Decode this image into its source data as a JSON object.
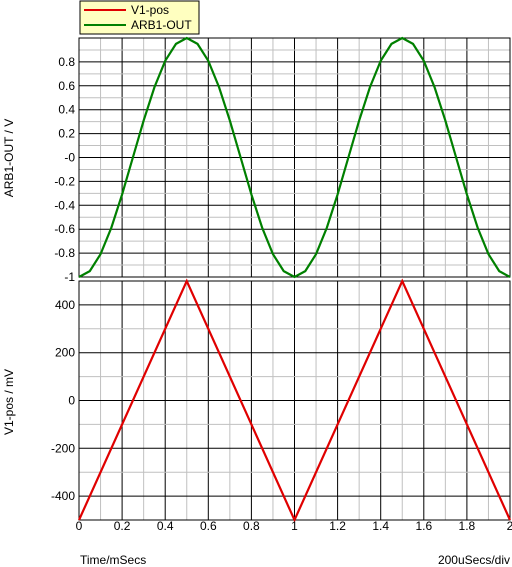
{
  "chart_data": {
    "type": "line",
    "legend": {
      "placement": "top-left",
      "entries": [
        {
          "name": "V1-pos",
          "color": "#e00000"
        },
        {
          "name": "ARB1-OUT",
          "color": "#008000"
        }
      ]
    },
    "x": {
      "label": "Time/mSecs",
      "range": [
        0,
        2
      ],
      "ticks": [
        "0",
        "0.2",
        "0.4",
        "0.6",
        "0.8",
        "1",
        "1.2",
        "1.4",
        "1.6",
        "1.8",
        "2"
      ],
      "scale_note": "200uSecs/div"
    },
    "panels": [
      {
        "ylabel": "ARB1-OUT / V",
        "ylim": [
          -1,
          1
        ],
        "yticks": [
          "0.8",
          "0.6",
          "0.4",
          "0.2",
          "-0",
          "-0.2",
          "-0.4",
          "-0.6",
          "-0.8",
          "-1"
        ],
        "ytick_values": [
          0.8,
          0.6,
          0.4,
          0.2,
          0,
          -0.2,
          -0.4,
          -0.6,
          -0.8,
          -1
        ],
        "series": [
          {
            "name": "ARB1-OUT",
            "color": "#008000",
            "x": [
              0,
              0.05,
              0.1,
              0.15,
              0.2,
              0.25,
              0.3,
              0.35,
              0.4,
              0.45,
              0.5,
              0.55,
              0.6,
              0.65,
              0.7,
              0.75,
              0.8,
              0.85,
              0.9,
              0.95,
              1.0,
              1.05,
              1.1,
              1.15,
              1.2,
              1.25,
              1.3,
              1.35,
              1.4,
              1.45,
              1.5,
              1.55,
              1.6,
              1.65,
              1.7,
              1.75,
              1.8,
              1.85,
              1.9,
              1.95,
              2.0
            ],
            "y": [
              -1,
              -0.951,
              -0.809,
              -0.588,
              -0.309,
              0,
              0.309,
              0.588,
              0.809,
              0.951,
              1,
              0.951,
              0.809,
              0.588,
              0.309,
              0,
              -0.309,
              -0.588,
              -0.809,
              -0.951,
              -1,
              -0.951,
              -0.809,
              -0.588,
              -0.309,
              0,
              0.309,
              0.588,
              0.809,
              0.951,
              1,
              0.951,
              0.809,
              0.588,
              0.309,
              0,
              -0.309,
              -0.588,
              -0.809,
              -0.951,
              -1
            ]
          }
        ]
      },
      {
        "ylabel": "V1-pos / mV",
        "ylim": [
          -500,
          500
        ],
        "yticks": [
          "400",
          "200",
          "0",
          "-200",
          "-400"
        ],
        "ytick_values": [
          400,
          200,
          0,
          -200,
          -400
        ],
        "series": [
          {
            "name": "V1-pos",
            "color": "#e00000",
            "x": [
              0,
              0.5,
              1,
              1.5,
              2
            ],
            "y": [
              -500,
              500,
              -500,
              500,
              -500
            ]
          }
        ]
      }
    ]
  }
}
